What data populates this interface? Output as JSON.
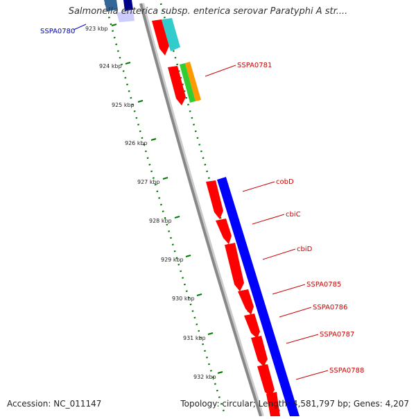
{
  "title": "Salmonella enterica subsp. enterica serovar Paratyphi A str....",
  "footer": {
    "accession": "Accession: NC_011147",
    "summary": "Topology: circular; Length: 4,581,797 bp; Genes: 4,207"
  },
  "ruler_labels": [
    "923 kbp",
    "924 kbp",
    "925 kbp",
    "926 kbp",
    "927 kbp",
    "928 kbp",
    "929 kbp",
    "930 kbp",
    "931 kbp",
    "932 kbp"
  ],
  "gene_labels": [
    {
      "name": "SSPA0780",
      "color": "#0000cc"
    },
    {
      "name": "SSPA0781",
      "color": "#cc0000"
    },
    {
      "name": "cobD",
      "color": "#cc0000"
    },
    {
      "name": "cbiC",
      "color": "#cc0000"
    },
    {
      "name": "cbiD",
      "color": "#cc0000"
    },
    {
      "name": "SSPA0785",
      "color": "#cc0000"
    },
    {
      "name": "SSPA0786",
      "color": "#cc0000"
    },
    {
      "name": "SSPA0787",
      "color": "#cc0000"
    },
    {
      "name": "SSPA0788",
      "color": "#cc0000"
    }
  ],
  "colors": {
    "forward_gene": "#ff0000",
    "cog_blue": "#0000ff",
    "cog_cyan": "#33cccc",
    "cog_green": "#33cc33",
    "cog_orange": "#ff9900",
    "backbone": "#888888",
    "tick": "#007700"
  }
}
